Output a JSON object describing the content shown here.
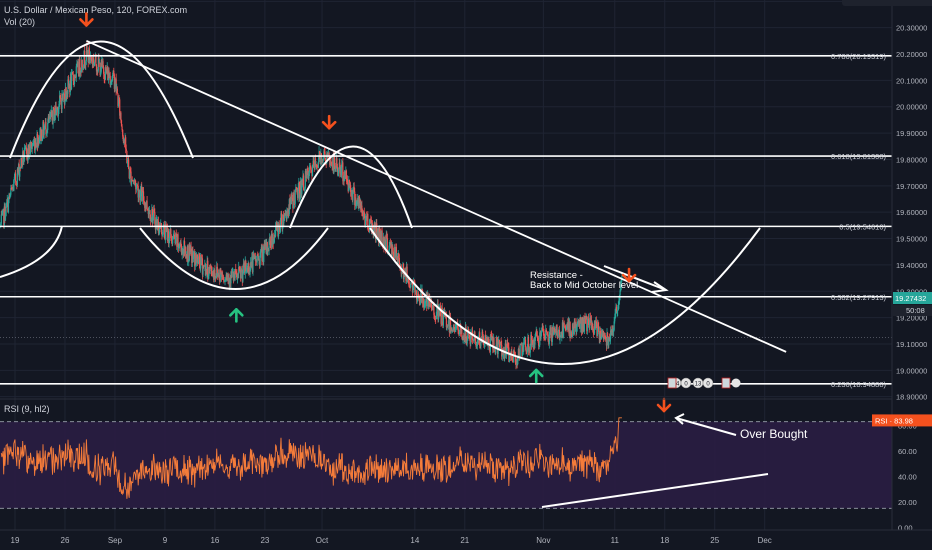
{
  "header": {
    "title": "U.S. Dollar / Mexican Peso, 120, FOREX.com",
    "volume_label": "Vol (20)",
    "rsi_label": "RSI (9, hl2)"
  },
  "colors": {
    "background": "#131722",
    "candle_up": "#26a69a",
    "candle_down": "#ef5350",
    "drawing": "#ffffff",
    "arrow_down": "#f4511e",
    "arrow_up": "#26c281",
    "rsi_line": "#f57c3a",
    "rsi_band": "#2a1d42",
    "axis_text": "#b2b5be",
    "price_tag": "#26a69a",
    "rsi_tag": "#f4511e"
  },
  "icons": [
    "arrow-down-icon",
    "arrow-up-icon",
    "event-flag-icon"
  ],
  "price_tag": {
    "price": "19.27432",
    "countdown": "50:08"
  },
  "rsi_tag": {
    "label": "RSI",
    "value": "83.98"
  },
  "event_badges": [
    "14",
    "0",
    "13",
    "0"
  ],
  "annotations": {
    "resistance": [
      "Resistance -",
      "Back to Mid October level"
    ],
    "overbought": "Over Bought"
  },
  "chart_data": [
    {
      "type": "candlestick",
      "title": "U.S. Dollar / Mexican Peso, 120, FOREX.com",
      "x_ticks": [
        "19",
        "26",
        "Sep",
        "9",
        "16",
        "23",
        "Oct",
        "14",
        "21",
        "Nov",
        "11",
        "18",
        "25",
        "Dec"
      ],
      "y_ticks": [
        "18.90000",
        "19.00000",
        "19.10000",
        "19.20000",
        "19.30000",
        "19.40000",
        "19.50000",
        "19.60000",
        "19.70000",
        "19.80000",
        "19.90000",
        "20.00000",
        "20.10000",
        "20.20000",
        "20.30000",
        "20.40000"
      ],
      "ylim": [
        18.895,
        20.405
      ],
      "last_price": 19.27432,
      "anchors": [
        {
          "date": "Aug 17",
          "price": 19.55
        },
        {
          "date": "Aug 20",
          "price": 19.8
        },
        {
          "date": "Aug 24",
          "price": 19.95
        },
        {
          "date": "Aug 29",
          "price": 20.2
        },
        {
          "date": "Sep 2",
          "price": 20.1
        },
        {
          "date": "Sep 4",
          "price": 19.75
        },
        {
          "date": "Sep 8",
          "price": 19.55
        },
        {
          "date": "Sep 12",
          "price": 19.45
        },
        {
          "date": "Sep 15",
          "price": 19.38
        },
        {
          "date": "Sep 19",
          "price": 19.35
        },
        {
          "date": "Sep 23",
          "price": 19.45
        },
        {
          "date": "Sep 27",
          "price": 19.65
        },
        {
          "date": "Oct 1",
          "price": 19.82
        },
        {
          "date": "Oct 4",
          "price": 19.75
        },
        {
          "date": "Oct 7",
          "price": 19.58
        },
        {
          "date": "Oct 11",
          "price": 19.45
        },
        {
          "date": "Oct 14",
          "price": 19.3
        },
        {
          "date": "Oct 17",
          "price": 19.22
        },
        {
          "date": "Oct 21",
          "price": 19.13
        },
        {
          "date": "Oct 25",
          "price": 19.1
        },
        {
          "date": "Oct 28",
          "price": 19.05
        },
        {
          "date": "Oct 31",
          "price": 19.12
        },
        {
          "date": "Nov 4",
          "price": 19.15
        },
        {
          "date": "Nov 7",
          "price": 19.18
        },
        {
          "date": "Nov 10",
          "price": 19.12
        },
        {
          "date": "Nov 12",
          "price": 19.27
        }
      ],
      "fib_levels": [
        {
          "label": "0.786(20.19319)",
          "price": 20.19319
        },
        {
          "label": "0.618(19.81308)",
          "price": 19.81308
        },
        {
          "label": "0.5(19.54610)",
          "price": 19.5461
        },
        {
          "label": "0.382(19.27913)",
          "price": 19.27913
        },
        {
          "label": "0.236(18.94888)",
          "price": 18.94888
        }
      ],
      "trendline": [
        {
          "date": "Aug 29",
          "price": 20.25
        },
        {
          "date": "Dec 5",
          "price": 19.07
        }
      ],
      "arrows": [
        {
          "dir": "down",
          "date": "Aug 29",
          "price": 20.32
        },
        {
          "dir": "down",
          "date": "Oct 2",
          "price": 19.93
        },
        {
          "dir": "down",
          "date": "Nov 13",
          "price": 19.35
        },
        {
          "dir": "up",
          "date": "Sep 19",
          "price": 19.22
        },
        {
          "dir": "up",
          "date": "Oct 31",
          "price": 18.99
        }
      ]
    },
    {
      "type": "line",
      "title": "RSI (9, hl2)",
      "y_ticks": [
        "0.00",
        "20.00",
        "40.00",
        "60.00",
        "80.00"
      ],
      "ylim": [
        -2,
        100
      ],
      "bands": [
        15,
        83
      ],
      "last_value": 83.98
    }
  ]
}
